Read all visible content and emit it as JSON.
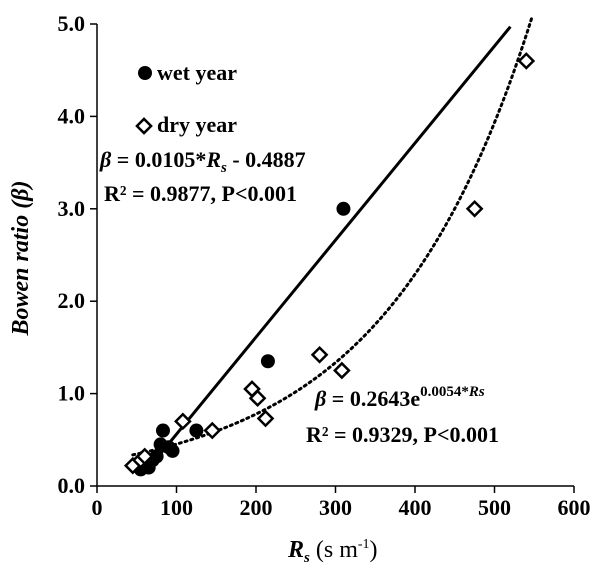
{
  "chart_data": {
    "type": "scatter",
    "xlabel": "Rs (s m-1)",
    "xlabel_parts": {
      "symbol": "R",
      "sub": "s",
      "unit_open": " (s m",
      "unit_sup": "-1",
      "unit_close": ")"
    },
    "ylabel": "Bowen ratio (β)",
    "xlim": [
      0,
      600
    ],
    "ylim": [
      0,
      5
    ],
    "x_ticks": [
      "0",
      "100",
      "200",
      "300",
      "400",
      "500",
      "600"
    ],
    "y_ticks": [
      "0.0",
      "1.0",
      "2.0",
      "3.0",
      "4.0",
      "5.0"
    ],
    "grid": false,
    "legend_position": "top-left",
    "series": [
      {
        "name": "wet year",
        "marker": "filled-circle",
        "color": "#000000",
        "points": [
          {
            "x": 55,
            "y": 0.18
          },
          {
            "x": 60,
            "y": 0.22
          },
          {
            "x": 65,
            "y": 0.2
          },
          {
            "x": 70,
            "y": 0.28
          },
          {
            "x": 75,
            "y": 0.32
          },
          {
            "x": 80,
            "y": 0.45
          },
          {
            "x": 83,
            "y": 0.6
          },
          {
            "x": 90,
            "y": 0.42
          },
          {
            "x": 95,
            "y": 0.38
          },
          {
            "x": 125,
            "y": 0.6
          },
          {
            "x": 215,
            "y": 1.35
          },
          {
            "x": 310,
            "y": 3.0
          }
        ],
        "fit": {
          "kind": "linear",
          "slope": 0.0105,
          "intercept": -0.4887,
          "x_range": [
            75,
            520
          ]
        }
      },
      {
        "name": "dry year",
        "marker": "open-diamond",
        "color": "#000000",
        "points": [
          {
            "x": 45,
            "y": 0.22
          },
          {
            "x": 55,
            "y": 0.28
          },
          {
            "x": 60,
            "y": 0.32
          },
          {
            "x": 108,
            "y": 0.7
          },
          {
            "x": 145,
            "y": 0.6
          },
          {
            "x": 195,
            "y": 1.05
          },
          {
            "x": 202,
            "y": 0.95
          },
          {
            "x": 212,
            "y": 0.73
          },
          {
            "x": 280,
            "y": 1.42
          },
          {
            "x": 308,
            "y": 1.25
          },
          {
            "x": 475,
            "y": 3.0
          },
          {
            "x": 540,
            "y": 4.6
          }
        ],
        "fit": {
          "kind": "exponential",
          "a": 0.2643,
          "b": 0.0054,
          "x_range": [
            45,
            548
          ]
        }
      }
    ],
    "annotations": {
      "wet_eq_beta": "β",
      "wet_eq_mid": " = 0.0105*",
      "wet_eq_r": "R",
      "wet_eq_s": "s",
      "wet_eq_tail": " - 0.4887",
      "wet_r2": "R² = 0.9877, P<0.001",
      "dry_eq_beta": "β",
      "dry_eq_mid": " = 0.2643e",
      "dry_eq_exp": "0.0054*",
      "dry_eq_exp_r": "Rs",
      "dry_r2": "R² = 0.9329, P<0.001"
    }
  }
}
